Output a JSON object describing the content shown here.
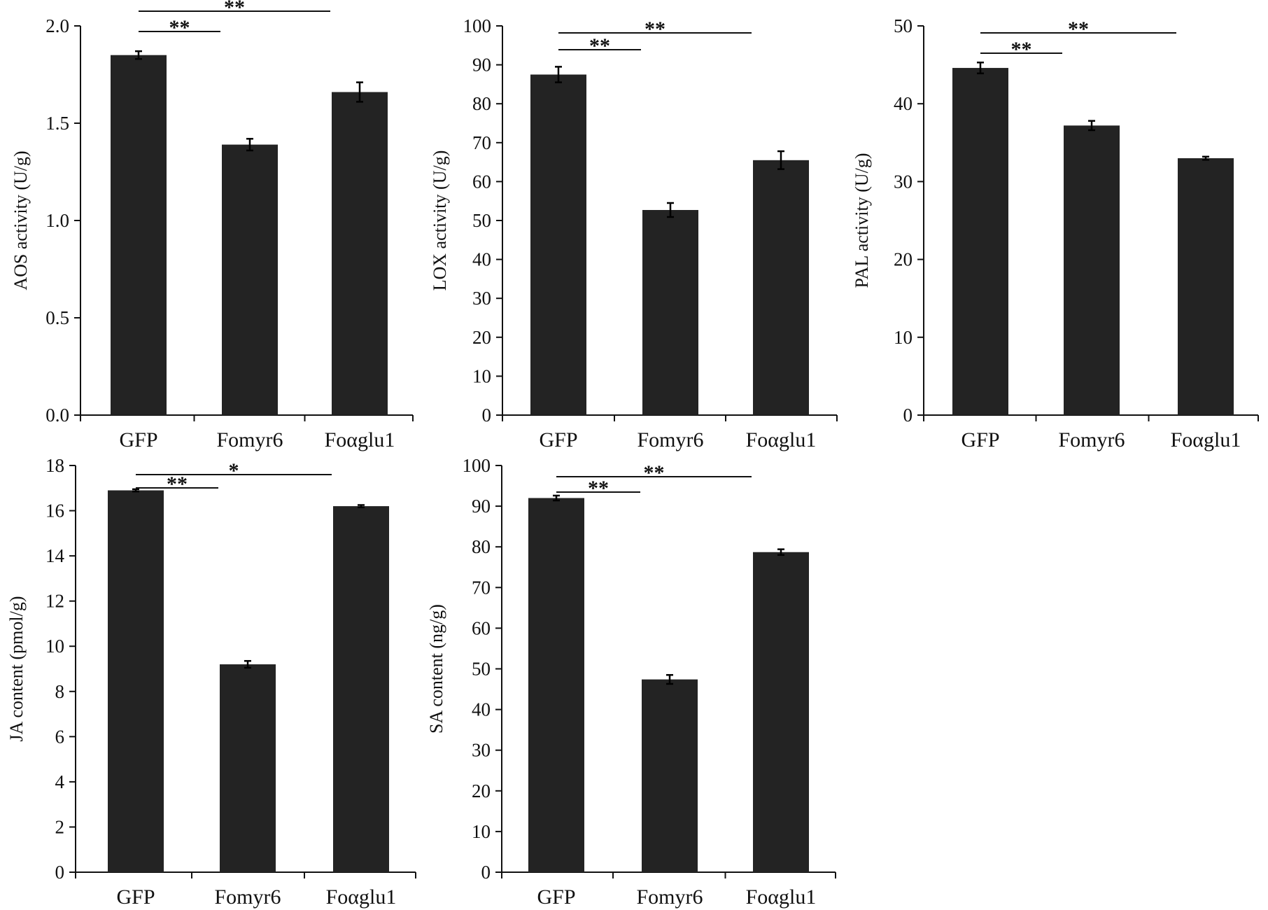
{
  "colors": {
    "bar": "#232323",
    "axis": "#111111",
    "background": "#ffffff"
  },
  "chart_data": [
    {
      "type": "bar",
      "categories": [
        "GFP",
        "Fomyr6",
        "Foαglu1"
      ],
      "values": [
        1.85,
        1.39,
        1.66
      ],
      "errors": [
        0.02,
        0.03,
        0.05
      ],
      "ylabel": "AOS activity (U/g)",
      "ylim": [
        0,
        2.0
      ],
      "yticks": [
        "0.0",
        "0.5",
        "1.0",
        "1.5",
        "2.0"
      ],
      "significance": [
        {
          "from": "GFP",
          "to": "Fomyr6",
          "label": "**"
        },
        {
          "from": "GFP",
          "to": "Foαglu1",
          "label": "**"
        }
      ]
    },
    {
      "type": "bar",
      "categories": [
        "GFP",
        "Fomyr6",
        "Foαglu1"
      ],
      "values": [
        87.5,
        52.7,
        65.5
      ],
      "errors": [
        2.0,
        1.8,
        2.3
      ],
      "ylabel": "LOX activity (U/g)",
      "ylim": [
        0,
        100
      ],
      "yticks": [
        "0",
        "10",
        "20",
        "30",
        "40",
        "50",
        "60",
        "70",
        "80",
        "90",
        "100"
      ],
      "significance": [
        {
          "from": "GFP",
          "to": "Fomyr6",
          "label": "**"
        },
        {
          "from": "GFP",
          "to": "Foαglu1",
          "label": "**"
        }
      ]
    },
    {
      "type": "bar",
      "categories": [
        "GFP",
        "Fomyr6",
        "Foαglu1"
      ],
      "values": [
        44.6,
        37.2,
        33.0
      ],
      "errors": [
        0.7,
        0.6,
        0.2
      ],
      "ylabel": "PAL activity (U/g)",
      "ylim": [
        0,
        50
      ],
      "yticks": [
        "0",
        "10",
        "20",
        "30",
        "40",
        "50"
      ],
      "significance": [
        {
          "from": "GFP",
          "to": "Fomyr6",
          "label": "**"
        },
        {
          "from": "GFP",
          "to": "Foαglu1",
          "label": "**"
        }
      ]
    },
    {
      "type": "bar",
      "categories": [
        "GFP",
        "Fomyr6",
        "Foαglu1"
      ],
      "values": [
        16.9,
        9.2,
        16.2
      ],
      "errors": [
        0.05,
        0.15,
        0.05
      ],
      "ylabel": "JA content (pmol/g)",
      "ylim": [
        0,
        18
      ],
      "yticks": [
        "0",
        "2",
        "4",
        "6",
        "8",
        "10",
        "12",
        "14",
        "16",
        "18"
      ],
      "significance": [
        {
          "from": "GFP",
          "to": "Fomyr6",
          "label": "**"
        },
        {
          "from": "GFP",
          "to": "Foαglu1",
          "label": "*"
        }
      ]
    },
    {
      "type": "bar",
      "categories": [
        "GFP",
        "Fomyr6",
        "Foαglu1"
      ],
      "values": [
        92.0,
        47.4,
        78.7
      ],
      "errors": [
        0.6,
        1.1,
        0.7
      ],
      "ylabel": "SA content (ng/g)",
      "ylim": [
        0,
        100
      ],
      "yticks": [
        "0",
        "10",
        "20",
        "30",
        "40",
        "50",
        "60",
        "70",
        "80",
        "90",
        "100"
      ],
      "significance": [
        {
          "from": "GFP",
          "to": "Fomyr6",
          "label": "**"
        },
        {
          "from": "GFP",
          "to": "Foαglu1",
          "label": "**"
        }
      ]
    }
  ]
}
